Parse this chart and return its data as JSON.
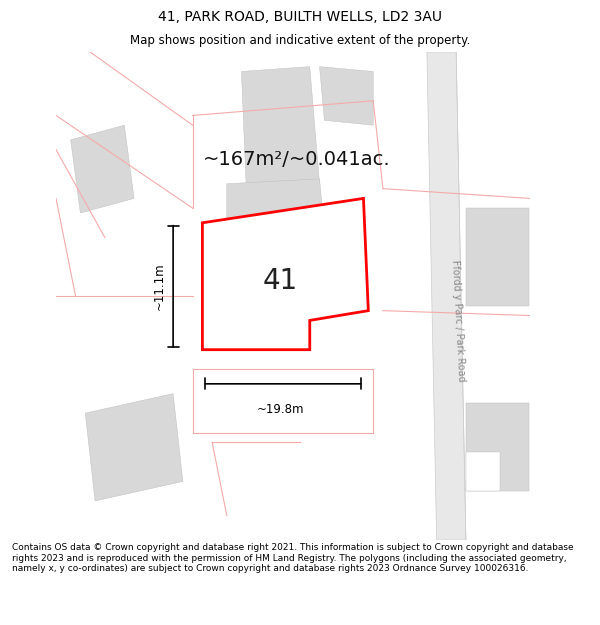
{
  "title": "41, PARK ROAD, BUILTH WELLS, LD2 3AU",
  "subtitle": "Map shows position and indicative extent of the property.",
  "footer": "Contains OS data © Crown copyright and database right 2021. This information is subject to Crown copyright and database rights 2023 and is reproduced with the permission of HM Land Registry. The polygons (including the associated geometry, namely x, y co-ordinates) are subject to Crown copyright and database rights 2023 Ordnance Survey 100026316.",
  "area_label": "~167m²/~0.041ac.",
  "number_label": "41",
  "width_label": "~19.8m",
  "height_label": "~11.1m",
  "road_label": "Ffordd y Parc / Park Road",
  "bg_color": "#ffffff",
  "map_bg": "#ffffff",
  "property_color": "#ff0000",
  "building_fill": "#d8d8d8",
  "road_fill": "#e8e8e8",
  "plot_edge_color": "#f5aaaa",
  "figsize": [
    6.0,
    6.25
  ],
  "dpi": 100,
  "title_fontsize": 10,
  "subtitle_fontsize": 8.5,
  "footer_fontsize": 6.5,
  "area_fontsize": 14,
  "number_fontsize": 20,
  "dim_fontsize": 8.5,
  "road_fontsize": 7
}
